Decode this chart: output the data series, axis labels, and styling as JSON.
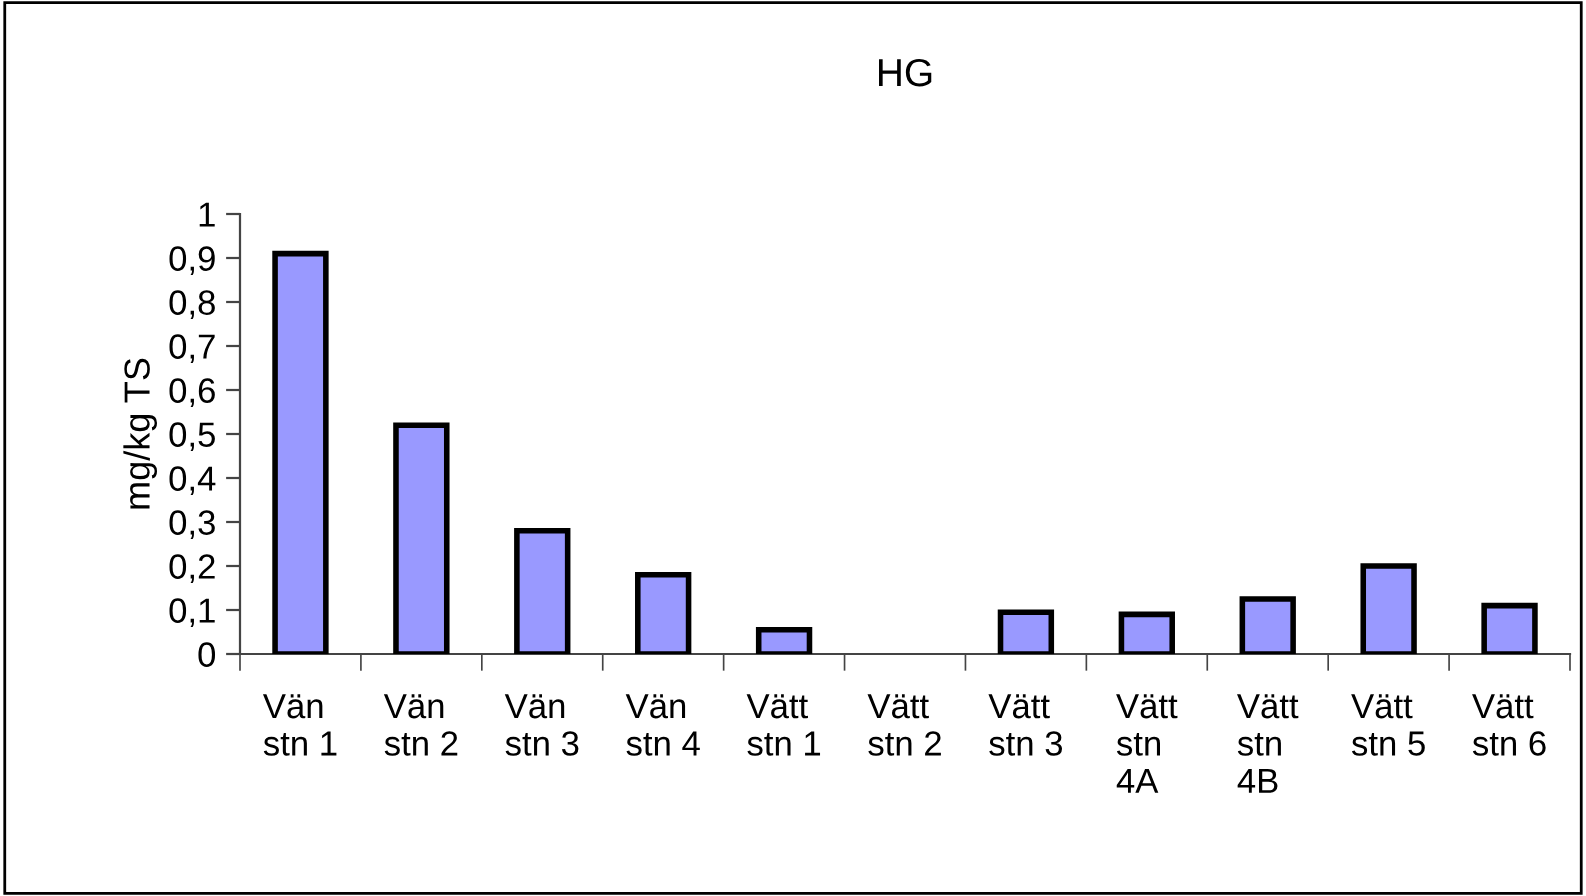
{
  "chart_data": {
    "type": "bar",
    "title": "HG",
    "ylabel": "mg/kg TS",
    "categories": [
      "Vän\nstn 1",
      "Vän\nstn 2",
      "Vän\nstn 3",
      "Vän\nstn 4",
      "Vätt\nstn 1",
      "Vätt\nstn 2",
      "Vätt\nstn 3",
      "Vätt\nstn\n4A",
      "Vätt\nstn\n4B",
      "Vätt\nstn 5",
      "Vätt\nstn 6"
    ],
    "values": [
      0.91,
      0.52,
      0.28,
      0.18,
      0.055,
      null,
      0.095,
      0.09,
      0.125,
      0.2,
      0.11
    ],
    "color": "#9999ff",
    "ylim": [
      0,
      1
    ],
    "yticks": [
      {
        "value": 0,
        "label": "0"
      },
      {
        "value": 0.1,
        "label": "0,1"
      },
      {
        "value": 0.2,
        "label": "0,2"
      },
      {
        "value": 0.3,
        "label": "0,3"
      },
      {
        "value": 0.4,
        "label": "0,4"
      },
      {
        "value": 0.5,
        "label": "0,5"
      },
      {
        "value": 0.6,
        "label": "0,6"
      },
      {
        "value": 0.7,
        "label": "0,7"
      },
      {
        "value": 0.8,
        "label": "0,8"
      },
      {
        "value": 0.9,
        "label": "0,9"
      },
      {
        "value": 1,
        "label": "1"
      }
    ],
    "grid": false,
    "legend": false
  }
}
